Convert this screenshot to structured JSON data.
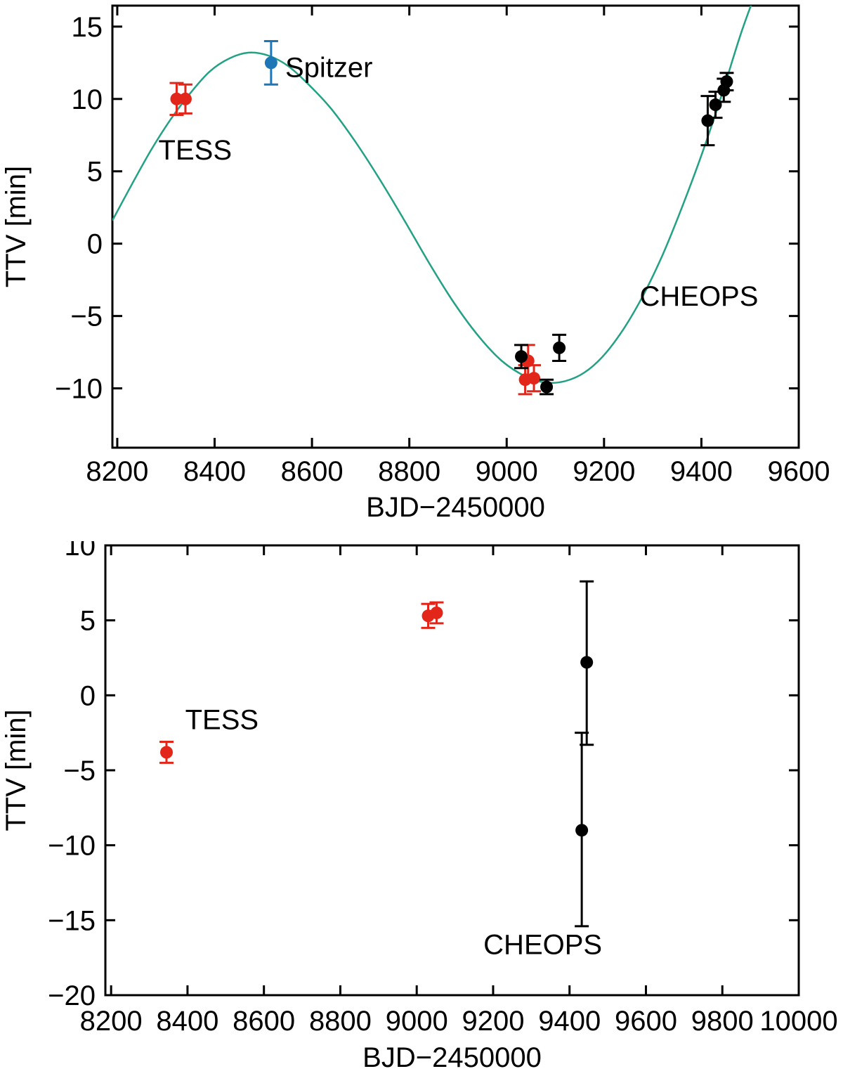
{
  "page": {
    "background": "#ffffff"
  },
  "colors": {
    "tess": "#e3261a",
    "spitzer": "#1d76b6",
    "cheops": "#000000",
    "model": "#23a184",
    "axis": "#000000"
  },
  "chart_data": [
    {
      "type": "scatter",
      "title": "",
      "xlabel": "BJD−2450000",
      "ylabel": "TTV [min]",
      "xlim": [
        8190,
        9600
      ],
      "ylim": [
        -14.1,
        16.45
      ],
      "grid": false,
      "legend": "none (inline text annotations)",
      "xticks": [
        {
          "v": 8200,
          "label": "8200"
        },
        {
          "v": 8400,
          "label": "8400"
        },
        {
          "v": 8600,
          "label": "8600"
        },
        {
          "v": 8800,
          "label": "8800"
        },
        {
          "v": 9000,
          "label": "9000"
        },
        {
          "v": 9200,
          "label": "9200"
        },
        {
          "v": 9400,
          "label": "9400"
        },
        {
          "v": 9600,
          "label": "9600"
        }
      ],
      "yticks": [
        {
          "v": -10,
          "label": "−10"
        },
        {
          "v": -5,
          "label": "−5"
        },
        {
          "v": 0,
          "label": "0"
        },
        {
          "v": 5,
          "label": "5"
        },
        {
          "v": 10,
          "label": "10"
        },
        {
          "v": 15,
          "label": "15"
        }
      ],
      "model_curve": {
        "name": "sinusoidal-ttv-model",
        "color_key": "model",
        "x": [
          8190,
          8230,
          8270,
          8310,
          8350,
          8390,
          8430,
          8470,
          8510,
          8550,
          8590,
          8640,
          8690,
          8740,
          8790,
          8840,
          8890,
          8940,
          8990,
          9040,
          9080,
          9120,
          9160,
          9200,
          9240,
          9280,
          9320,
          9360,
          9400,
          9440,
          9480,
          9510
        ],
        "y": [
          1.6,
          4.1,
          6.5,
          8.6,
          10.4,
          11.9,
          12.8,
          13.2,
          13.0,
          12.3,
          11.1,
          9.3,
          7.0,
          4.4,
          1.6,
          -1.3,
          -4.0,
          -6.3,
          -8.1,
          -9.2,
          -9.6,
          -9.5,
          -8.9,
          -7.7,
          -5.9,
          -3.6,
          -0.8,
          2.5,
          6.1,
          10.1,
          14.4,
          17.2
        ]
      },
      "series": [
        {
          "name": "TESS",
          "color_key": "tess",
          "points": [
            {
              "x": 8322,
              "y": 10.0,
              "e": 1.1
            },
            {
              "x": 8340,
              "y": 10.0,
              "e": 1.0
            },
            {
              "x": 9044,
              "y": -8.1,
              "e": 1.1
            },
            {
              "x": 9038,
              "y": -9.4,
              "e": 1.0
            },
            {
              "x": 9056,
              "y": -9.3,
              "e": 0.9
            }
          ]
        },
        {
          "name": "Spitzer",
          "color_key": "spitzer",
          "points": [
            {
              "x": 8516,
              "y": 12.5,
              "e": 1.5
            }
          ]
        },
        {
          "name": "CHEOPS",
          "color_key": "cheops",
          "points": [
            {
              "x": 9030,
              "y": -7.8,
              "e": 0.8
            },
            {
              "x": 9082,
              "y": -9.9,
              "e": 0.5
            },
            {
              "x": 9108,
              "y": -7.2,
              "e": 0.9
            },
            {
              "x": 9413,
              "y": 8.5,
              "e": 1.7
            },
            {
              "x": 9429,
              "y": 9.6,
              "e": 0.9
            },
            {
              "x": 9446,
              "y": 10.6,
              "e": 0.8
            },
            {
              "x": 9452,
              "y": 11.2,
              "e": 0.6
            }
          ]
        }
      ],
      "annotations": [
        {
          "text": "TESS",
          "x": 8360,
          "y": 6.5,
          "color_key": "tess",
          "anchor": "middle"
        },
        {
          "text": "Spitzer",
          "x": 8545,
          "y": 12.2,
          "color_key": "spitzer",
          "anchor": "start"
        },
        {
          "text": "CHEOPS",
          "x": 9395,
          "y": -3.6,
          "color_key": "cheops",
          "anchor": "middle"
        }
      ]
    },
    {
      "type": "scatter",
      "title": "",
      "xlabel": "BJD−2450000",
      "ylabel": "TTV [min]",
      "xlim": [
        8185,
        10000
      ],
      "ylim": [
        -20,
        10
      ],
      "grid": false,
      "legend": "none (inline text annotations)",
      "xticks": [
        {
          "v": 8200,
          "label": "8200"
        },
        {
          "v": 8400,
          "label": "8400"
        },
        {
          "v": 8600,
          "label": "8600"
        },
        {
          "v": 8800,
          "label": "8800"
        },
        {
          "v": 9000,
          "label": "9000"
        },
        {
          "v": 9200,
          "label": "9200"
        },
        {
          "v": 9400,
          "label": "9400"
        },
        {
          "v": 9600,
          "label": "9600"
        },
        {
          "v": 9800,
          "label": "9800"
        },
        {
          "v": 10000,
          "label": "10000"
        }
      ],
      "yticks": [
        {
          "v": -20,
          "label": "−20"
        },
        {
          "v": -15,
          "label": "−15"
        },
        {
          "v": -10,
          "label": "−10"
        },
        {
          "v": -5,
          "label": "−5"
        },
        {
          "v": 0,
          "label": "0"
        },
        {
          "v": 5,
          "label": "5"
        },
        {
          "v": 10,
          "label": "10"
        }
      ],
      "series": [
        {
          "name": "TESS",
          "color_key": "tess",
          "points": [
            {
              "x": 8345,
              "y": -3.8,
              "e": 0.7
            },
            {
              "x": 9030,
              "y": 5.3,
              "e": 0.8
            },
            {
              "x": 9052,
              "y": 5.5,
              "e": 0.7
            }
          ]
        },
        {
          "name": "CHEOPS",
          "color_key": "cheops",
          "points": [
            {
              "x": 9445,
              "y": 2.2,
              "e_hi": 5.4,
              "e_lo": 5.5
            },
            {
              "x": 9432,
              "y": -9.0,
              "e_hi": 6.5,
              "e_lo": 6.4
            }
          ]
        }
      ],
      "annotations": [
        {
          "text": "TESS",
          "x": 8490,
          "y": -1.6,
          "color_key": "tess",
          "anchor": "middle"
        },
        {
          "text": "CHEOPS",
          "x": 9330,
          "y": -16.6,
          "color_key": "cheops",
          "anchor": "middle"
        }
      ]
    }
  ]
}
